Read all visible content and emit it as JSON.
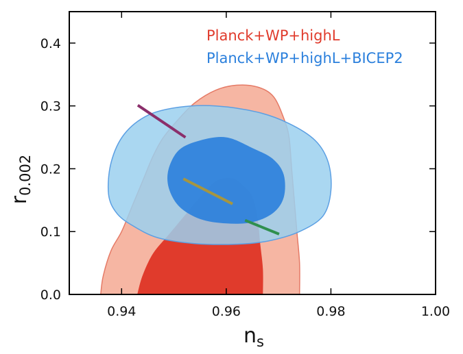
{
  "chart_data": {
    "type": "contour",
    "x_axis": {
      "label_main": "n",
      "label_sub": "s",
      "range": [
        0.93,
        1.0
      ],
      "ticks": [
        "0.94",
        "0.96",
        "0.98",
        "1.00"
      ]
    },
    "y_axis": {
      "label_main": "r",
      "label_sub": "0.002",
      "range": [
        0.0,
        0.45
      ],
      "ticks": [
        "0.0",
        "0.1",
        "0.2",
        "0.3",
        "0.4"
      ]
    },
    "legend_position": "top-right",
    "series": [
      {
        "name": "Planck+WP+highL",
        "color": "#e03b2c",
        "outer_color": "#f6b6a3",
        "outer": [
          [
            0.936,
            0
          ],
          [
            0.9365,
            0.03
          ],
          [
            0.938,
            0.07
          ],
          [
            0.94,
            0.1
          ],
          [
            0.942,
            0.14
          ],
          [
            0.944,
            0.18
          ],
          [
            0.946,
            0.22
          ],
          [
            0.948,
            0.25
          ],
          [
            0.951,
            0.28
          ],
          [
            0.954,
            0.305
          ],
          [
            0.958,
            0.325
          ],
          [
            0.962,
            0.333
          ],
          [
            0.966,
            0.33
          ],
          [
            0.969,
            0.315
          ],
          [
            0.971,
            0.28
          ],
          [
            0.972,
            0.25
          ],
          [
            0.9725,
            0.2
          ],
          [
            0.973,
            0.15
          ],
          [
            0.9735,
            0.1
          ],
          [
            0.974,
            0.05
          ],
          [
            0.974,
            0
          ]
        ],
        "inner": [
          [
            0.943,
            0
          ],
          [
            0.944,
            0.03
          ],
          [
            0.946,
            0.065
          ],
          [
            0.949,
            0.095
          ],
          [
            0.952,
            0.125
          ],
          [
            0.955,
            0.155
          ],
          [
            0.958,
            0.18
          ],
          [
            0.961,
            0.185
          ],
          [
            0.963,
            0.175
          ],
          [
            0.965,
            0.155
          ],
          [
            0.966,
            0.12
          ],
          [
            0.9665,
            0.08
          ],
          [
            0.967,
            0.04
          ],
          [
            0.967,
            0
          ]
        ]
      },
      {
        "name": "Planck+WP+highL+BICEP2",
        "color": "#2a7fdc",
        "outer_color": "#9bd0ef",
        "outer": [
          [
            0.9375,
            0.16
          ],
          [
            0.939,
            0.13
          ],
          [
            0.942,
            0.11
          ],
          [
            0.947,
            0.09
          ],
          [
            0.954,
            0.081
          ],
          [
            0.962,
            0.08
          ],
          [
            0.968,
            0.085
          ],
          [
            0.974,
            0.1
          ],
          [
            0.9785,
            0.125
          ],
          [
            0.98,
            0.165
          ],
          [
            0.9795,
            0.21
          ],
          [
            0.977,
            0.245
          ],
          [
            0.972,
            0.272
          ],
          [
            0.966,
            0.29
          ],
          [
            0.958,
            0.3
          ],
          [
            0.951,
            0.298
          ],
          [
            0.945,
            0.285
          ],
          [
            0.9405,
            0.255
          ],
          [
            0.938,
            0.21
          ]
        ],
        "inner": [
          [
            0.949,
            0.17
          ],
          [
            0.951,
            0.14
          ],
          [
            0.955,
            0.12
          ],
          [
            0.96,
            0.113
          ],
          [
            0.965,
            0.115
          ],
          [
            0.969,
            0.13
          ],
          [
            0.971,
            0.155
          ],
          [
            0.971,
            0.19
          ],
          [
            0.969,
            0.215
          ],
          [
            0.965,
            0.233
          ],
          [
            0.96,
            0.25
          ],
          [
            0.955,
            0.245
          ],
          [
            0.951,
            0.23
          ],
          [
            0.949,
            0.2
          ]
        ]
      }
    ],
    "lines": [
      {
        "color": "#8b2f6b",
        "x": [
          0.9431,
          0.9522
        ],
        "y": [
          0.301,
          0.25
        ]
      },
      {
        "color": "#a69640",
        "x": [
          0.9518,
          0.9612
        ],
        "y": [
          0.184,
          0.144
        ]
      },
      {
        "color": "#2f8f4e",
        "x": [
          0.9636,
          0.9701
        ],
        "y": [
          0.118,
          0.096
        ]
      }
    ]
  }
}
